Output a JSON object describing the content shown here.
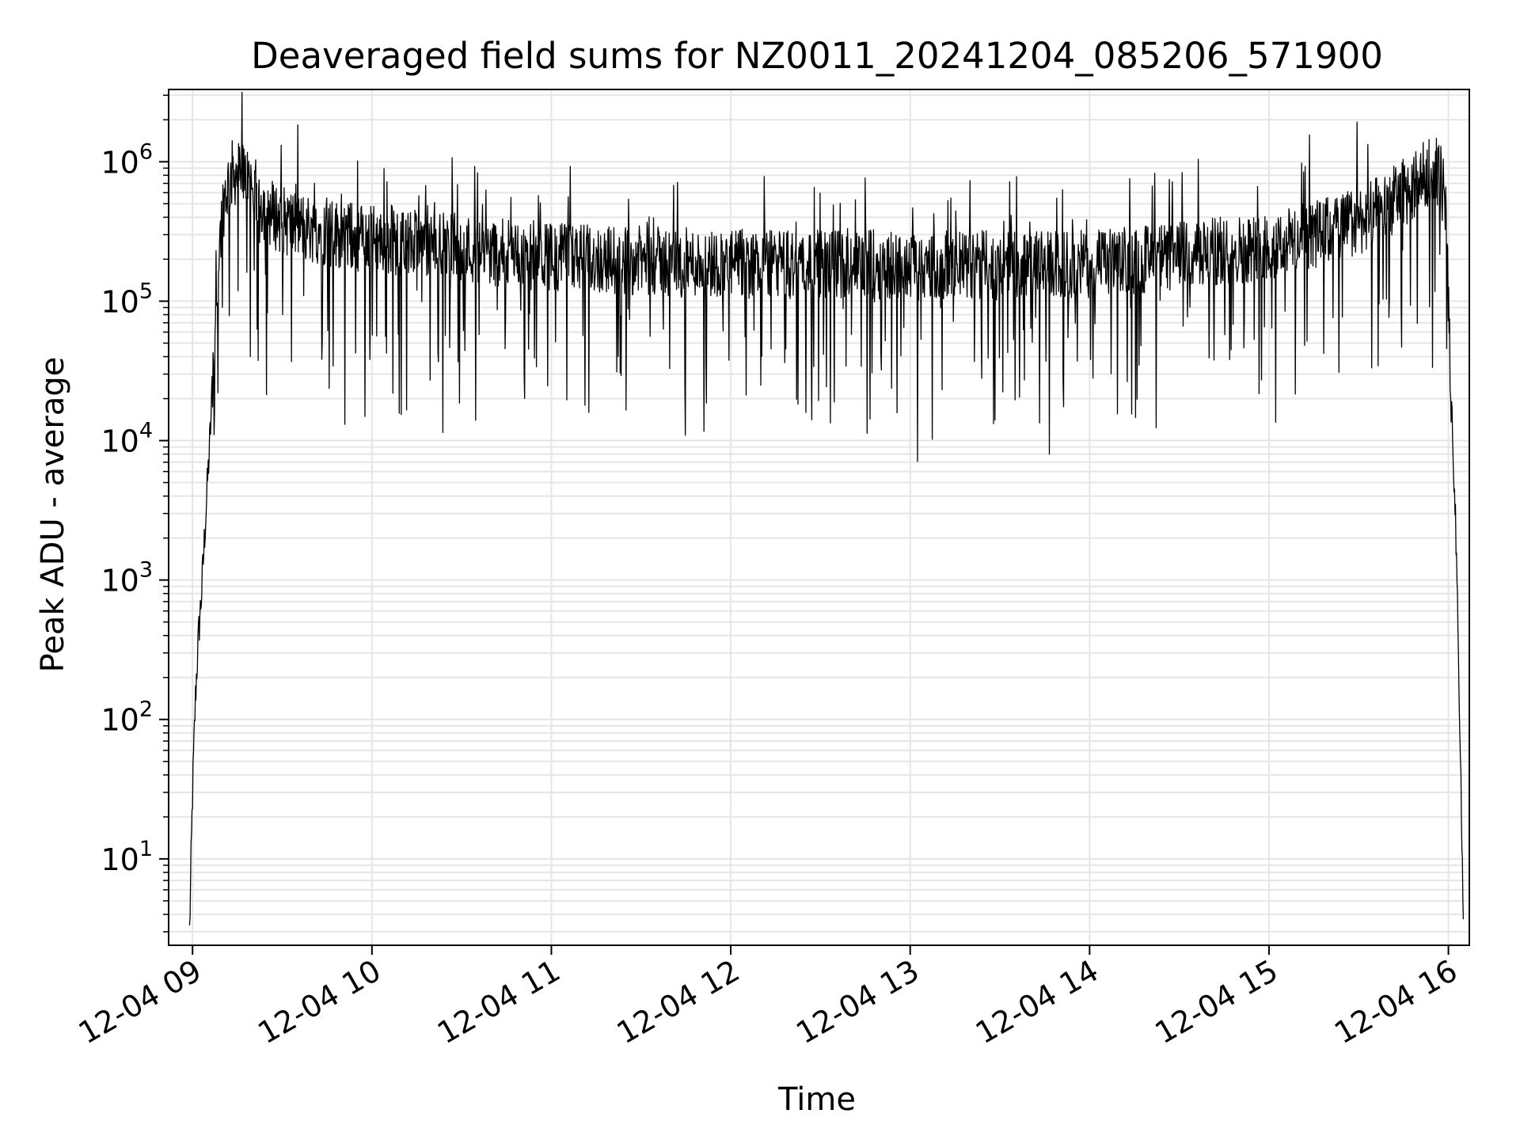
{
  "chart_data": {
    "type": "line",
    "title": "Deaveraged field sums for NZ0011_20241204_085206_571900",
    "xlabel": "Time",
    "ylabel": "Peak ADU - average",
    "yscale": "log",
    "ylim": [
      2.4,
      3300000
    ],
    "xlim": [
      "2024-12-04 08:52",
      "2024-12-04 16:07"
    ],
    "x_ticks": [
      {
        "value": "2024-12-04 09:00",
        "label": "12-04 09"
      },
      {
        "value": "2024-12-04 10:00",
        "label": "12-04 10"
      },
      {
        "value": "2024-12-04 11:00",
        "label": "12-04 11"
      },
      {
        "value": "2024-12-04 12:00",
        "label": "12-04 12"
      },
      {
        "value": "2024-12-04 13:00",
        "label": "12-04 13"
      },
      {
        "value": "2024-12-04 14:00",
        "label": "12-04 14"
      },
      {
        "value": "2024-12-04 15:00",
        "label": "12-04 15"
      },
      {
        "value": "2024-12-04 16:00",
        "label": "12-04 16"
      }
    ],
    "y_ticks": [
      {
        "value": 10,
        "base": "10",
        "exp": "1"
      },
      {
        "value": 100,
        "base": "10",
        "exp": "2"
      },
      {
        "value": 1000,
        "base": "10",
        "exp": "3"
      },
      {
        "value": 10000,
        "base": "10",
        "exp": "4"
      },
      {
        "value": 100000,
        "base": "10",
        "exp": "5"
      },
      {
        "value": 1000000,
        "base": "10",
        "exp": "6"
      }
    ],
    "grid": true,
    "line_color": "#000000",
    "grid_color": "#e5e5e5",
    "series": [
      {
        "x": [
          "2024-12-04 08:59",
          "2024-12-04 09:00",
          "2024-12-04 09:01",
          "2024-12-04 09:02",
          "2024-12-04 09:03",
          "2024-12-04 09:04",
          "2024-12-04 09:05",
          "2024-12-04 09:06",
          "2024-12-04 09:07",
          "2024-12-04 09:08",
          "2024-12-04 09:09",
          "2024-12-04 09:10",
          "2024-12-04 09:11",
          "2024-12-04 09:12",
          "2024-12-04 09:13",
          "2024-12-04 09:14",
          "2024-12-04 09:16",
          "2024-12-04 09:18",
          "2024-12-04 09:20",
          "2024-12-04 09:22",
          "2024-12-04 09:25",
          "2024-12-04 09:30",
          "2024-12-04 09:35",
          "2024-12-04 09:40",
          "2024-12-04 09:45",
          "2024-12-04 09:50",
          "2024-12-04 09:55",
          "2024-12-04 10:00",
          "2024-12-04 10:10",
          "2024-12-04 10:20",
          "2024-12-04 10:30",
          "2024-12-04 10:45",
          "2024-12-04 11:00",
          "2024-12-04 11:15",
          "2024-12-04 11:30",
          "2024-12-04 11:45",
          "2024-12-04 12:00",
          "2024-12-04 12:15",
          "2024-12-04 12:30",
          "2024-12-04 12:45",
          "2024-12-04 13:00",
          "2024-12-04 13:15",
          "2024-12-04 13:30",
          "2024-12-04 13:45",
          "2024-12-04 14:00",
          "2024-12-04 14:15",
          "2024-12-04 14:30",
          "2024-12-04 14:45",
          "2024-12-04 15:00",
          "2024-12-04 15:10",
          "2024-12-04 15:20",
          "2024-12-04 15:30",
          "2024-12-04 15:35",
          "2024-12-04 15:40",
          "2024-12-04 15:45",
          "2024-12-04 15:50",
          "2024-12-04 15:53",
          "2024-12-04 15:55",
          "2024-12-04 15:57",
          "2024-12-04 15:59",
          "2024-12-04 16:00",
          "2024-12-04 16:01",
          "2024-12-04 16:02",
          "2024-12-04 16:03",
          "2024-12-04 16:04",
          "2024-12-04 16:05"
        ],
        "y": [
          3,
          30,
          150,
          400,
          800,
          2000,
          5000,
          12000,
          40000,
          100000,
          250000,
          450000,
          600000,
          700000,
          800000,
          850000,
          800000,
          750000,
          650000,
          550000,
          450000,
          380000,
          350000,
          330000,
          310000,
          300000,
          290000,
          280000,
          260000,
          250000,
          240000,
          220000,
          210000,
          200000,
          195000,
          190000,
          185000,
          185000,
          185000,
          185000,
          180000,
          180000,
          180000,
          180000,
          185000,
          195000,
          210000,
          230000,
          250000,
          280000,
          320000,
          380000,
          420000,
          500000,
          600000,
          700000,
          850000,
          900000,
          850000,
          500000,
          100000,
          20000,
          5000,
          800,
          60,
          3
        ]
      }
    ]
  }
}
